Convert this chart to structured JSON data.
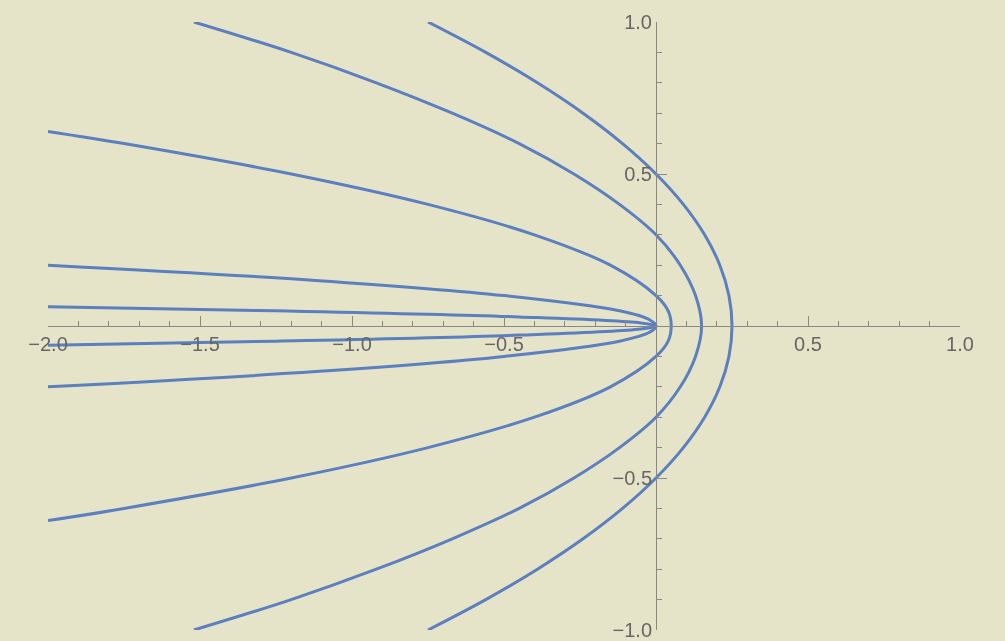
{
  "chart_data": {
    "type": "line",
    "marker": "none",
    "line_style": "solid",
    "grid": false,
    "xlim": [
      -2,
      1
    ],
    "ylim": [
      -1,
      1
    ],
    "xticks": [
      {
        "value": -2,
        "label": "−2.0"
      },
      {
        "value": -1.5,
        "label": "−1.5"
      },
      {
        "value": -1,
        "label": "−1.0"
      },
      {
        "value": -0.5,
        "label": "−0.5"
      },
      {
        "value": 0.5,
        "label": "0.5"
      },
      {
        "value": 1,
        "label": "1.0"
      }
    ],
    "yticks": [
      {
        "value": -1,
        "label": "−1.0"
      },
      {
        "value": -0.5,
        "label": "−0.5"
      },
      {
        "value": 0.5,
        "label": "0.5"
      },
      {
        "value": 1,
        "label": "1.0"
      }
    ],
    "series": [
      {
        "color": "#5b7fbf",
        "x": [
          -0.75,
          -0.56,
          -0.39,
          -0.24,
          -0.11,
          0,
          0.09,
          0.16,
          0.21,
          0.24,
          0.25,
          0.24,
          0.21,
          0.16,
          0.09,
          0,
          -0.11,
          -0.24,
          -0.39,
          -0.56,
          -0.75
        ],
        "values": [
          -1,
          -0.9,
          -0.8,
          -0.7,
          -0.6,
          -0.5,
          -0.4,
          -0.3,
          -0.2,
          -0.1,
          0,
          0.1,
          0.2,
          0.3,
          0.4,
          0.5,
          0.6,
          0.7,
          0.8,
          0.9,
          1
        ]
      },
      {
        "color": "#5b7fbf",
        "x": [
          -1.52,
          -1.2,
          -0.92,
          -0.67,
          -0.45,
          -0.27,
          -0.12,
          0,
          0.08,
          0.13,
          0.15,
          0.13,
          0.08,
          0,
          -0.12,
          -0.27,
          -0.45,
          -0.67,
          -0.92,
          -1.2,
          -1.52
        ],
        "values": [
          -1,
          -0.9,
          -0.8,
          -0.7,
          -0.6,
          -0.5,
          -0.4,
          -0.3,
          -0.2,
          -0.1,
          0,
          0.1,
          0.2,
          0.3,
          0.4,
          0.5,
          0.6,
          0.7,
          0.8,
          0.9,
          1
        ]
      },
      {
        "color": "#5b7fbf",
        "x": [
          -2,
          -1.75,
          -1.2,
          -0.75,
          -0.4,
          -0.15,
          0,
          0.04,
          0.05,
          0.04,
          0,
          -0.15,
          -0.4,
          -0.75,
          -1.2,
          -1.75,
          -2
        ],
        "values": [
          -0.64,
          -0.6,
          -0.5,
          -0.4,
          -0.3,
          -0.2,
          -0.1,
          -0.05,
          0,
          0.05,
          0.1,
          0.2,
          0.3,
          0.4,
          0.5,
          0.6,
          0.64
        ]
      },
      {
        "color": "#5b7fbf",
        "x": [
          -2,
          -1.12,
          -0.5,
          -0.12,
          -0.02,
          0,
          -0.02,
          -0.12,
          -0.5,
          -1.12,
          -2
        ],
        "values": [
          -0.2,
          -0.15,
          -0.1,
          -0.05,
          -0.02,
          0,
          0.02,
          0.05,
          0.1,
          0.15,
          0.2
        ]
      },
      {
        "color": "#5b7fbf",
        "x": [
          -2,
          -1.25,
          -0.45,
          -0.05,
          0,
          -0.05,
          -0.45,
          -1.25,
          -2
        ],
        "values": [
          -0.063,
          -0.05,
          -0.03,
          -0.01,
          0,
          0.01,
          0.03,
          0.05,
          0.063
        ]
      }
    ]
  }
}
